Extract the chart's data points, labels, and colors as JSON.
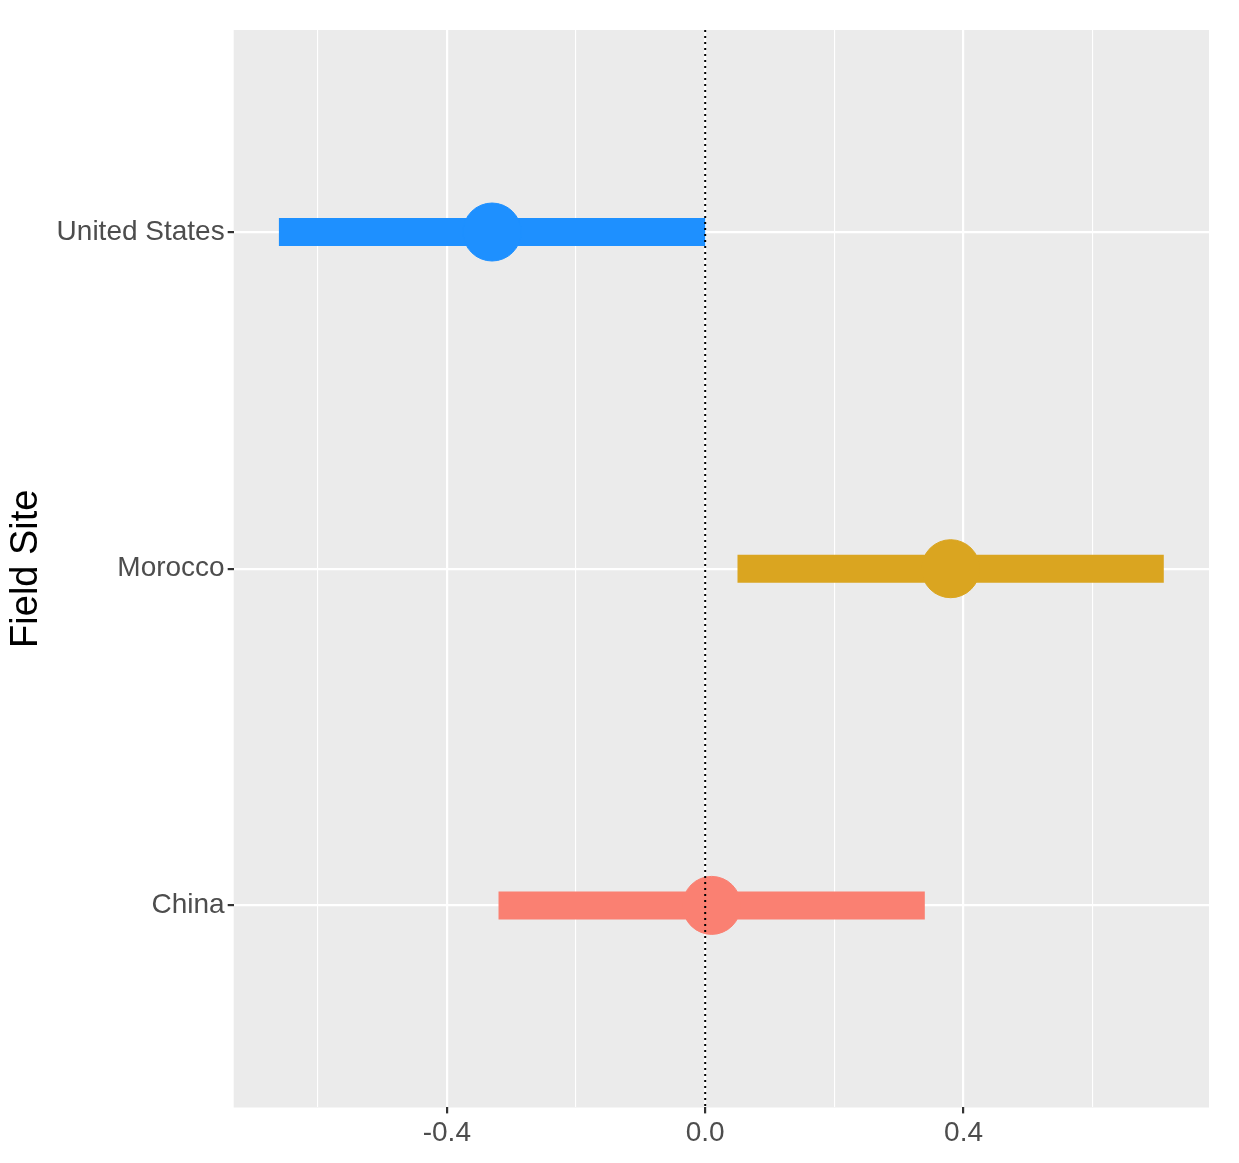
{
  "chart_data": {
    "type": "scatter",
    "orientation": "horizontal",
    "ylabel": "Field Site",
    "categories": [
      "United States",
      "Morocco",
      "China"
    ],
    "values": [
      -0.33,
      0.38,
      0.01
    ],
    "errors": [
      [
        -0.66,
        0.0
      ],
      [
        0.05,
        0.71
      ],
      [
        -0.32,
        0.34
      ]
    ],
    "colors": [
      "#1e90ff",
      "#daa520",
      "#fa8072"
    ],
    "xlim": [
      -0.73,
      0.78
    ],
    "xticks": [
      {
        "value": -0.6,
        "label": null
      },
      -0.4,
      {
        "value": -0.2,
        "label": null
      },
      {
        "value": 0,
        "label": "0.0"
      },
      {
        "value": 0.2,
        "label": null
      },
      0.4,
      {
        "value": 0.6,
        "label": null
      }
    ],
    "ref_lines": [
      {
        "axis": "x",
        "value": 0,
        "color": "#000000",
        "line_style": "dotted"
      }
    ],
    "grid": true,
    "marker": "circle",
    "legend": false
  }
}
